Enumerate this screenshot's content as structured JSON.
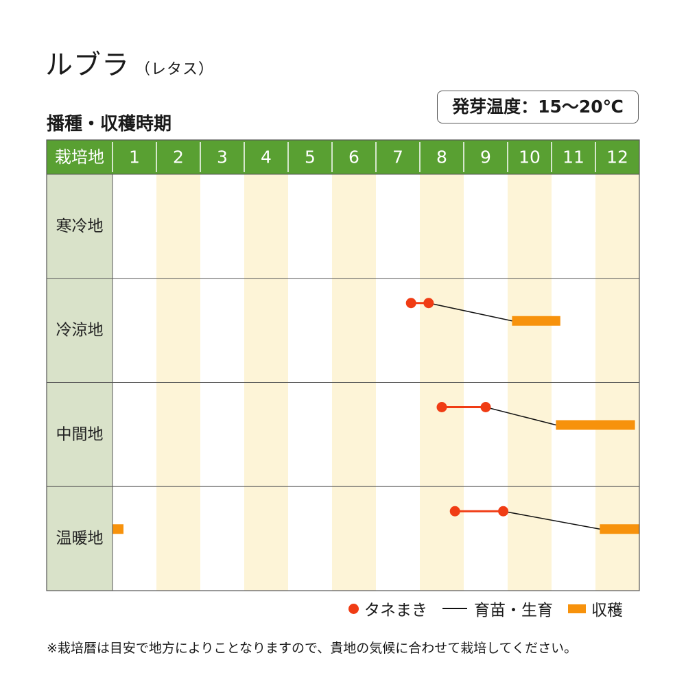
{
  "title": "ルブラ",
  "subtitle": "（レタス）",
  "section_title": "播種・収穫時期",
  "germination_temp": "発芽温度：15〜20℃",
  "legend": {
    "sowing": "タネまき",
    "growing": "育苗・生育",
    "harvest": "収穫"
  },
  "note": "※栽培暦は目安で地方によりことなりますので、貴地の気候に合わせて栽培してください。",
  "colors": {
    "header_green": "#59a032",
    "row_label_bg": "#d9e2c9",
    "stripe": "#fdf4d7",
    "sowing": "#f03c14",
    "harvest": "#f7920c",
    "growth_line": "#111111"
  },
  "chart_data": {
    "type": "table",
    "header_label": "栽培地",
    "months": [
      "1",
      "2",
      "3",
      "4",
      "5",
      "6",
      "7",
      "8",
      "9",
      "10",
      "11",
      "12"
    ],
    "rows": [
      {
        "name": "寒冷地",
        "sowing": null,
        "growth": null,
        "harvest": []
      },
      {
        "name": "冷涼地",
        "sowing": [
          7.8,
          8.2
        ],
        "growth": [
          8.2,
          10.1
        ],
        "harvest": [
          [
            10.1,
            11.2
          ]
        ]
      },
      {
        "name": "中間地",
        "sowing": [
          8.5,
          9.5
        ],
        "growth": [
          9.5,
          11.1
        ],
        "harvest": [
          [
            11.1,
            12.9
          ]
        ]
      },
      {
        "name": "温暖地",
        "sowing": [
          8.8,
          9.9
        ],
        "growth": [
          9.9,
          12.1
        ],
        "harvest": [
          [
            1.0,
            1.25
          ],
          [
            12.1,
            13.0
          ]
        ]
      }
    ]
  }
}
